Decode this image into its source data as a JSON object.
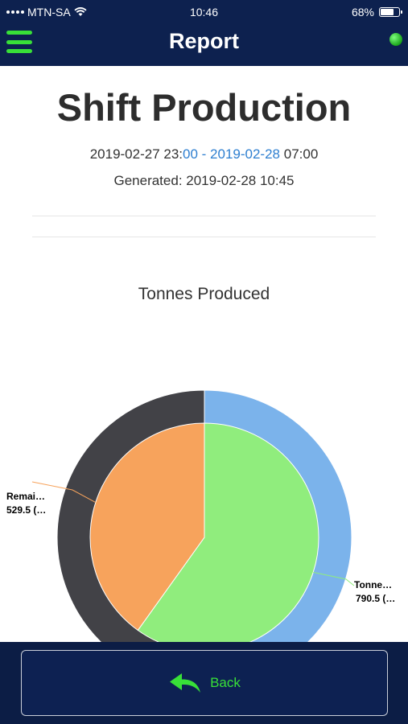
{
  "status_bar": {
    "carrier": "MTN-SA",
    "time": "10:46",
    "battery": "68%",
    "battery_level": 0.68
  },
  "header": {
    "title": "Report"
  },
  "report": {
    "title": "Shift Production",
    "range_start": "2019-02-27 23:",
    "range_link": "00 - 2019-02-28",
    "range_end": " 07:00",
    "generated": "Generated: 2019-02-28 10:45"
  },
  "chart_data": {
    "type": "pie",
    "title": "Tonnes Produced",
    "rings": [
      {
        "ring": "outer",
        "slices": [
          {
            "fraction": 0.5,
            "color": "#7bb3eb"
          },
          {
            "fraction": 0.5,
            "color": "#424247"
          }
        ]
      },
      {
        "ring": "inner",
        "slices": [
          {
            "label": "Tonne…",
            "value": 790.5,
            "value_label": "790.5 (…",
            "color": "#90ed7d"
          },
          {
            "label": "Remai…",
            "value": 529.5,
            "value_label": "529.5 (…",
            "color": "#f7a35c"
          }
        ]
      }
    ]
  },
  "footer": {
    "back_label": "Back"
  },
  "colors": {
    "nav": "#0d214f",
    "accent": "#38e038",
    "link": "#2e7fd0"
  }
}
